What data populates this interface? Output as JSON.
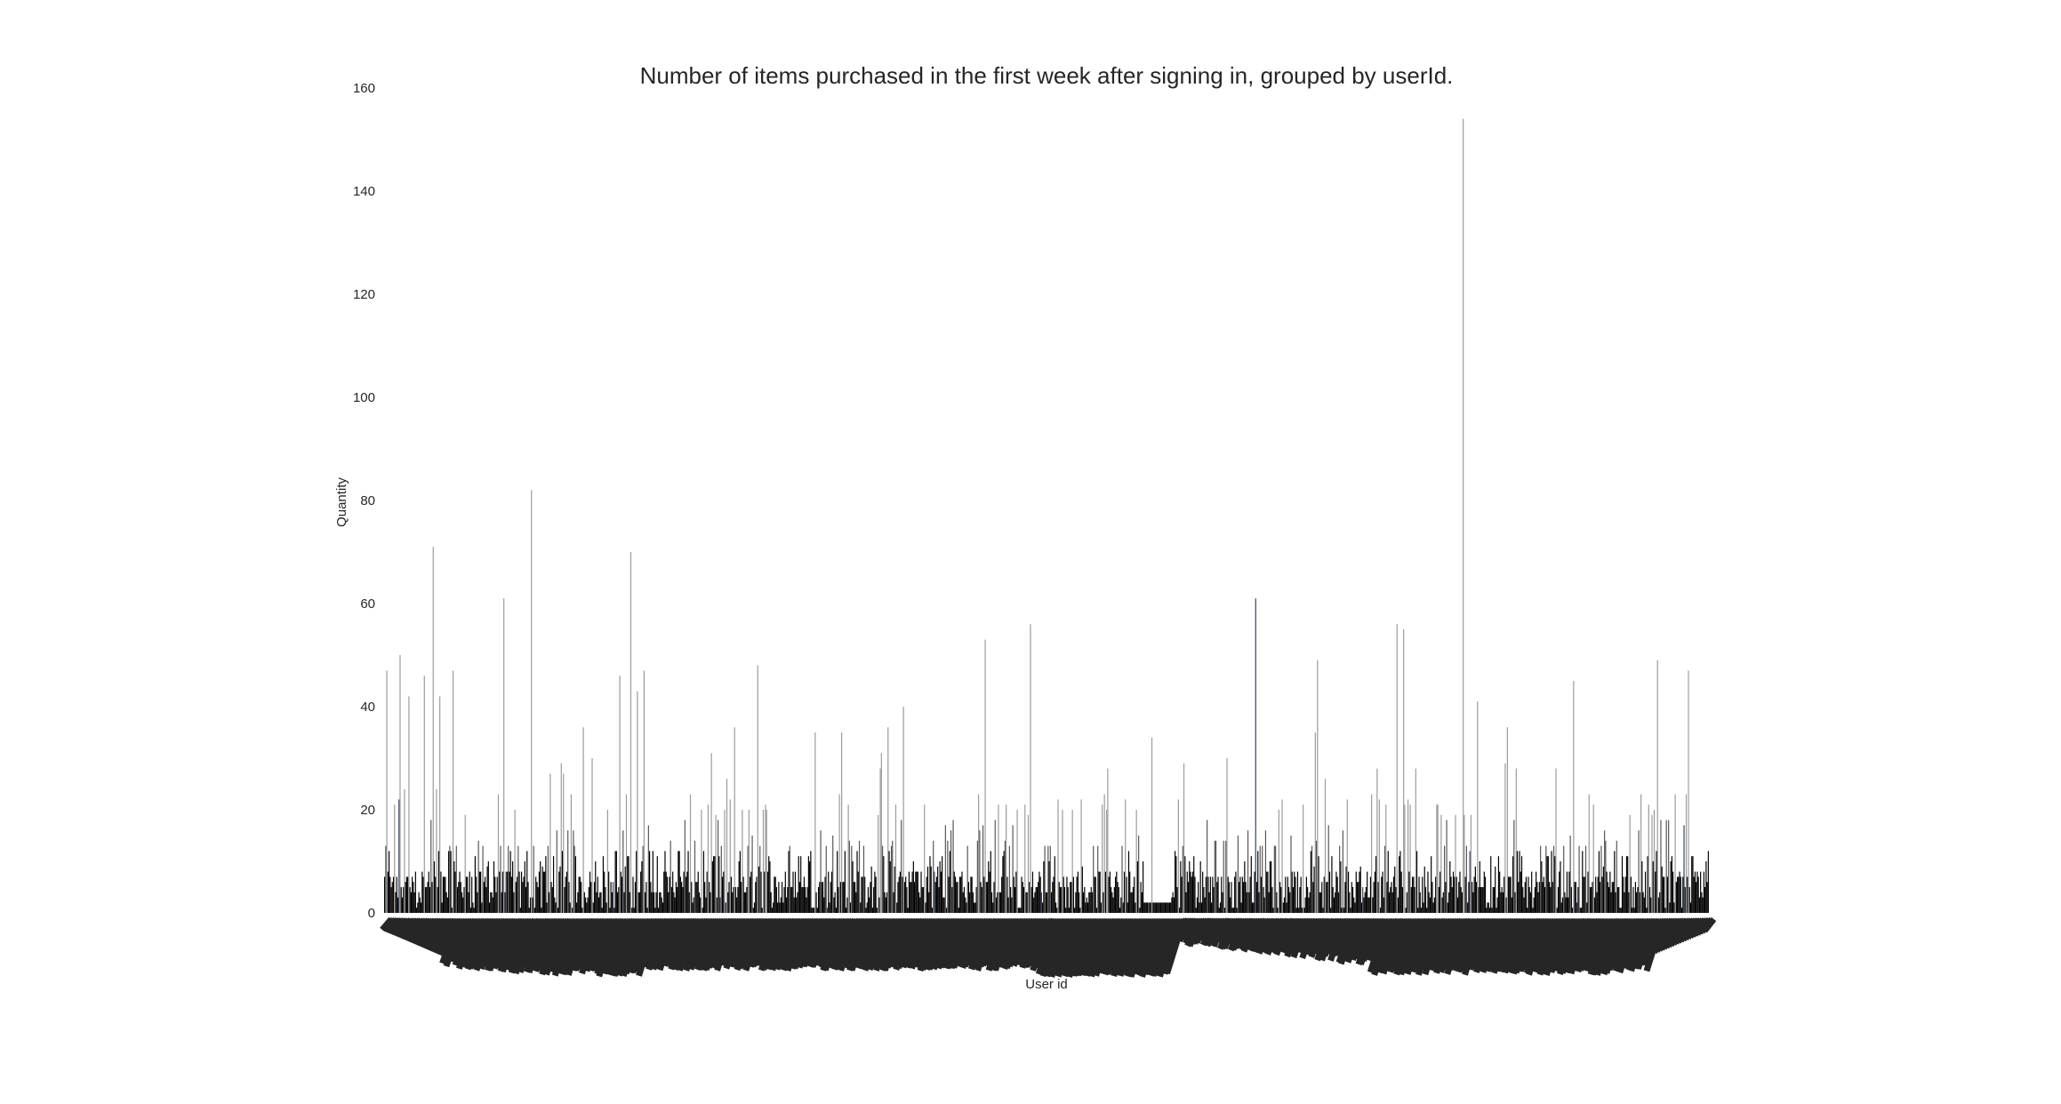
{
  "chart_data": {
    "type": "bar",
    "title": "Number of items purchased in the first week after signing in, grouped by userId.",
    "xlabel": "User id",
    "ylabel": "Quantity",
    "ylim": [
      0,
      160
    ],
    "yticks": [
      0,
      20,
      40,
      60,
      80,
      100,
      120,
      140,
      160
    ],
    "grid": false,
    "legend": "none",
    "bar_color": "#000000",
    "highlight_color": "#3a3f5c",
    "n_users": 1200,
    "baseline_range": [
      1,
      8
    ],
    "notable_values": [
      {
        "position": 0.002,
        "value": 47
      },
      {
        "position": 0.012,
        "value": 50
      },
      {
        "position": 0.018,
        "value": 42
      },
      {
        "position": 0.03,
        "value": 46
      },
      {
        "position": 0.037,
        "value": 71
      },
      {
        "position": 0.042,
        "value": 42
      },
      {
        "position": 0.052,
        "value": 47
      },
      {
        "position": 0.09,
        "value": 61
      },
      {
        "position": 0.111,
        "value": 82
      },
      {
        "position": 0.15,
        "value": 36
      },
      {
        "position": 0.157,
        "value": 30
      },
      {
        "position": 0.178,
        "value": 46
      },
      {
        "position": 0.186,
        "value": 70
      },
      {
        "position": 0.191,
        "value": 43
      },
      {
        "position": 0.196,
        "value": 47
      },
      {
        "position": 0.264,
        "value": 36
      },
      {
        "position": 0.282,
        "value": 48
      },
      {
        "position": 0.325,
        "value": 35
      },
      {
        "position": 0.345,
        "value": 35
      },
      {
        "position": 0.38,
        "value": 36
      },
      {
        "position": 0.392,
        "value": 40
      },
      {
        "position": 0.454,
        "value": 53
      },
      {
        "position": 0.488,
        "value": 56
      },
      {
        "position": 0.58,
        "value": 34
      },
      {
        "position": 0.658,
        "value": 61
      },
      {
        "position": 0.703,
        "value": 35
      },
      {
        "position": 0.705,
        "value": 49
      },
      {
        "position": 0.765,
        "value": 56
      },
      {
        "position": 0.77,
        "value": 55
      },
      {
        "position": 0.815,
        "value": 154
      },
      {
        "position": 0.826,
        "value": 41
      },
      {
        "position": 0.848,
        "value": 36
      },
      {
        "position": 0.898,
        "value": 45
      },
      {
        "position": 0.962,
        "value": 49
      },
      {
        "position": 0.985,
        "value": 47
      }
    ],
    "low_segment": {
      "start": 0.574,
      "end": 0.594,
      "value": 2
    }
  }
}
